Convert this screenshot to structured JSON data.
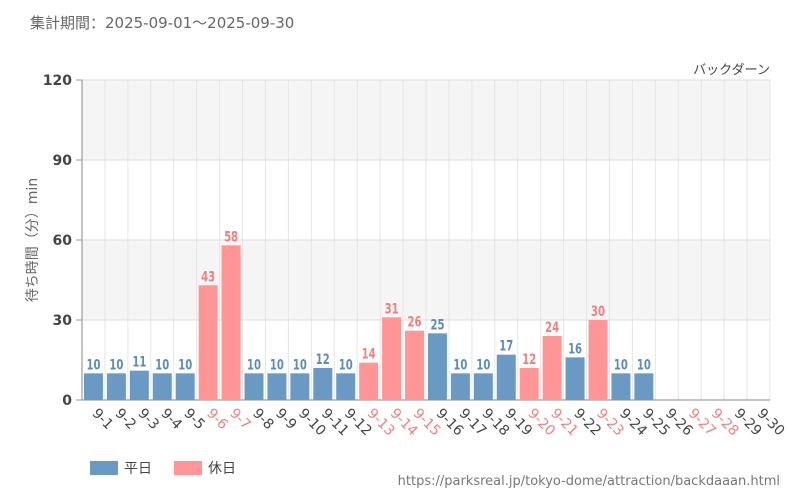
{
  "header": {
    "period": "集計期間：2025-09-01～2025-09-30"
  },
  "footer": {
    "source_url": "https://parksreal.jp/tokyo-dome/attraction/backdaaan.html"
  },
  "colors": {
    "weekday": "#6a9ac4",
    "holiday": "#ff9596",
    "weekday_label": "#5b8db8",
    "holiday_label": "#f07f80"
  },
  "chart_data": {
    "type": "bar",
    "series_label": "バックダーン",
    "ylabel": "待ち時間（分）min",
    "ylim": [
      0,
      120
    ],
    "yticks": [
      0,
      30,
      60,
      90,
      120
    ],
    "grid": true,
    "legend_position": "bottom-left",
    "legend": [
      {
        "key": "weekday",
        "label": "平日"
      },
      {
        "key": "holiday",
        "label": "休日"
      }
    ],
    "categories": [
      "9-1",
      "9-2",
      "9-3",
      "9-4",
      "9-5",
      "9-6",
      "9-7",
      "9-8",
      "9-9",
      "9-10",
      "9-11",
      "9-12",
      "9-13",
      "9-14",
      "9-15",
      "9-16",
      "9-17",
      "9-18",
      "9-19",
      "9-20",
      "9-21",
      "9-22",
      "9-23",
      "9-24",
      "9-25",
      "9-26",
      "9-27",
      "9-28",
      "9-29",
      "9-30"
    ],
    "values": [
      10,
      10,
      11,
      10,
      10,
      43,
      58,
      10,
      10,
      10,
      12,
      10,
      14,
      31,
      26,
      25,
      10,
      10,
      17,
      12,
      24,
      16,
      30,
      10,
      10,
      null,
      null,
      null,
      null,
      null
    ],
    "day_type": [
      "weekday",
      "weekday",
      "weekday",
      "weekday",
      "weekday",
      "holiday",
      "holiday",
      "weekday",
      "weekday",
      "weekday",
      "weekday",
      "weekday",
      "holiday",
      "holiday",
      "holiday",
      "weekday",
      "weekday",
      "weekday",
      "weekday",
      "holiday",
      "holiday",
      "weekday",
      "holiday",
      "weekday",
      "weekday",
      "weekday",
      "holiday",
      "holiday",
      "weekday",
      "weekday"
    ]
  }
}
